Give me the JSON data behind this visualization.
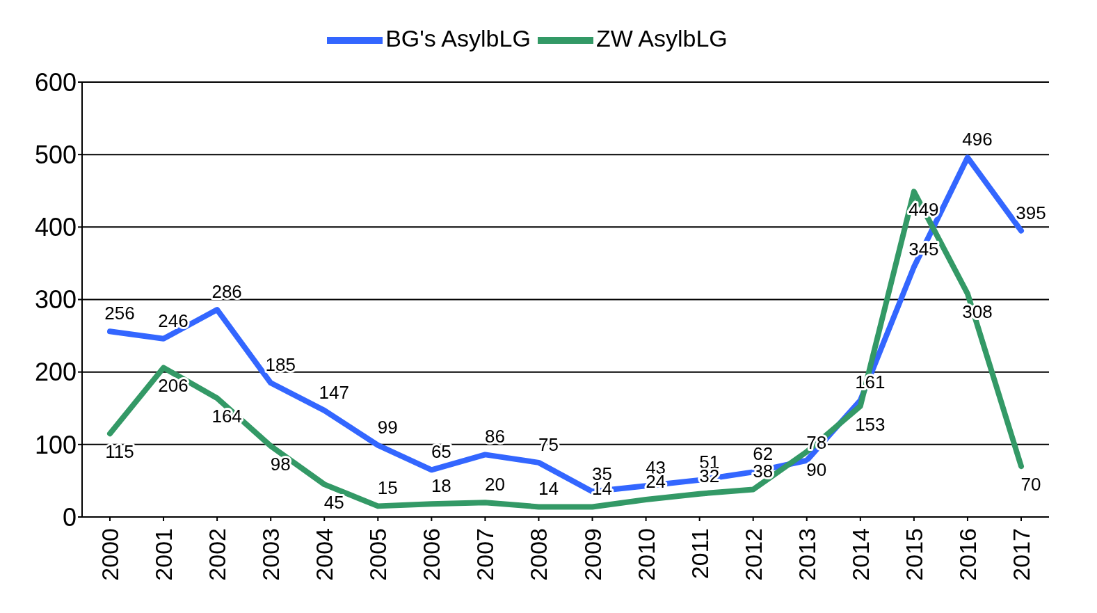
{
  "chart_data": {
    "type": "line",
    "categories": [
      "2000",
      "2001",
      "2002",
      "2003",
      "2004",
      "2005",
      "2006",
      "2007",
      "2008",
      "2009",
      "2010",
      "2011",
      "2012",
      "2013",
      "2014",
      "2015",
      "2016",
      "2017"
    ],
    "series": [
      {
        "name": "BG's AsylbLG",
        "color": "#3366ff",
        "values": [
          256,
          246,
          286,
          185,
          147,
          99,
          65,
          86,
          75,
          35,
          43,
          51,
          62,
          78,
          161,
          345,
          496,
          395
        ]
      },
      {
        "name": "ZW AsylbLG",
        "color": "#339966",
        "values": [
          115,
          206,
          164,
          98,
          45,
          15,
          18,
          20,
          14,
          14,
          24,
          32,
          38,
          90,
          153,
          449,
          308,
          70
        ]
      }
    ],
    "ylim": [
      0,
      600
    ],
    "yticks": [
      0,
      100,
      200,
      300,
      400,
      500,
      600
    ],
    "grid": "y",
    "legend": "top",
    "marker": "none",
    "line_style": "solid",
    "data_labels": true
  }
}
